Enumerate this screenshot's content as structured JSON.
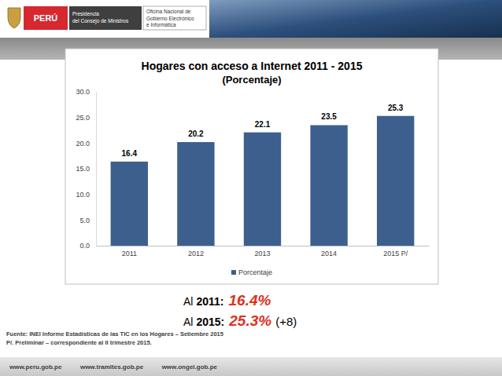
{
  "header": {
    "logo": "PERÚ",
    "entity": [
      "Presidencia",
      "del Consejo de Ministros"
    ],
    "office": [
      "Oficina Nacional de",
      "Gobierno Electrónico",
      "e Informática"
    ]
  },
  "chart_data": {
    "type": "bar",
    "title": "Hogares con acceso a Internet 2011 - 2015",
    "subtitle": "(Porcentaje)",
    "categories": [
      "2011",
      "2012",
      "2013",
      "2014",
      "2015 P/"
    ],
    "series": [
      {
        "name": "Porcentaje",
        "color": "#3c5f8e",
        "values": [
          16.4,
          20.2,
          22.1,
          23.5,
          25.3
        ]
      }
    ],
    "ylim": [
      0,
      30
    ],
    "yticks": [
      {
        "value": 0,
        "label": "0.0"
      },
      {
        "value": 5,
        "label": "5.0"
      },
      {
        "value": 10,
        "label": "10.0"
      },
      {
        "value": 15,
        "label": "15.0"
      },
      {
        "value": 20,
        "label": "20.0"
      },
      {
        "value": 25,
        "label": "25.0"
      },
      {
        "value": 30,
        "label": "30.0"
      }
    ],
    "grid": false,
    "data_labels": true,
    "legend": "bottom"
  },
  "summary": [
    {
      "prefix": "Al",
      "year": "2011:",
      "value": "16.4%"
    },
    {
      "prefix": "Al",
      "year": "2015:",
      "value": "25.3%",
      "change": "(+8)"
    }
  ],
  "source": [
    "Fuente: INEI Informe Estadísticas de las TIC en los Hogares – Setiembre 2015",
    "P/. Preliminar – correspondiente al II trimestre 2015."
  ],
  "footer": [
    "www.peru.gob.pe",
    "www.tramites.gob.pe",
    "www.ongei.gob.pe"
  ]
}
